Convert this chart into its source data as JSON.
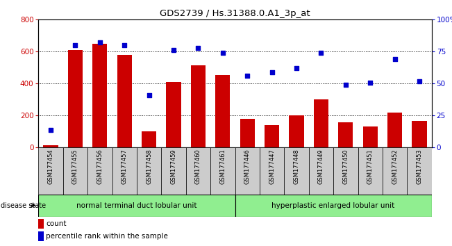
{
  "title": "GDS2739 / Hs.31388.0.A1_3p_at",
  "samples": [
    "GSM177454",
    "GSM177455",
    "GSM177456",
    "GSM177457",
    "GSM177458",
    "GSM177459",
    "GSM177460",
    "GSM177461",
    "GSM177446",
    "GSM177447",
    "GSM177448",
    "GSM177449",
    "GSM177450",
    "GSM177451",
    "GSM177452",
    "GSM177453"
  ],
  "counts": [
    15,
    610,
    650,
    580,
    100,
    410,
    515,
    455,
    180,
    140,
    200,
    300,
    160,
    130,
    220,
    165
  ],
  "percentiles": [
    14,
    80,
    82,
    80,
    41,
    76,
    78,
    74,
    56,
    59,
    62,
    74,
    49,
    51,
    69,
    52
  ],
  "group1_label": "normal terminal duct lobular unit",
  "group2_label": "hyperplastic enlarged lobular unit",
  "group1_count": 8,
  "group2_count": 8,
  "disease_state_label": "disease state",
  "bar_color": "#cc0000",
  "scatter_color": "#0000cc",
  "ylim_left": [
    0,
    800
  ],
  "ylim_right": [
    0,
    100
  ],
  "yticks_left": [
    0,
    200,
    400,
    600,
    800
  ],
  "yticks_right": [
    0,
    25,
    50,
    75,
    100
  ],
  "group_color": "#90ee90",
  "tick_label_bg": "#cccccc",
  "legend_count_label": "count",
  "legend_pct_label": "percentile rank within the sample"
}
